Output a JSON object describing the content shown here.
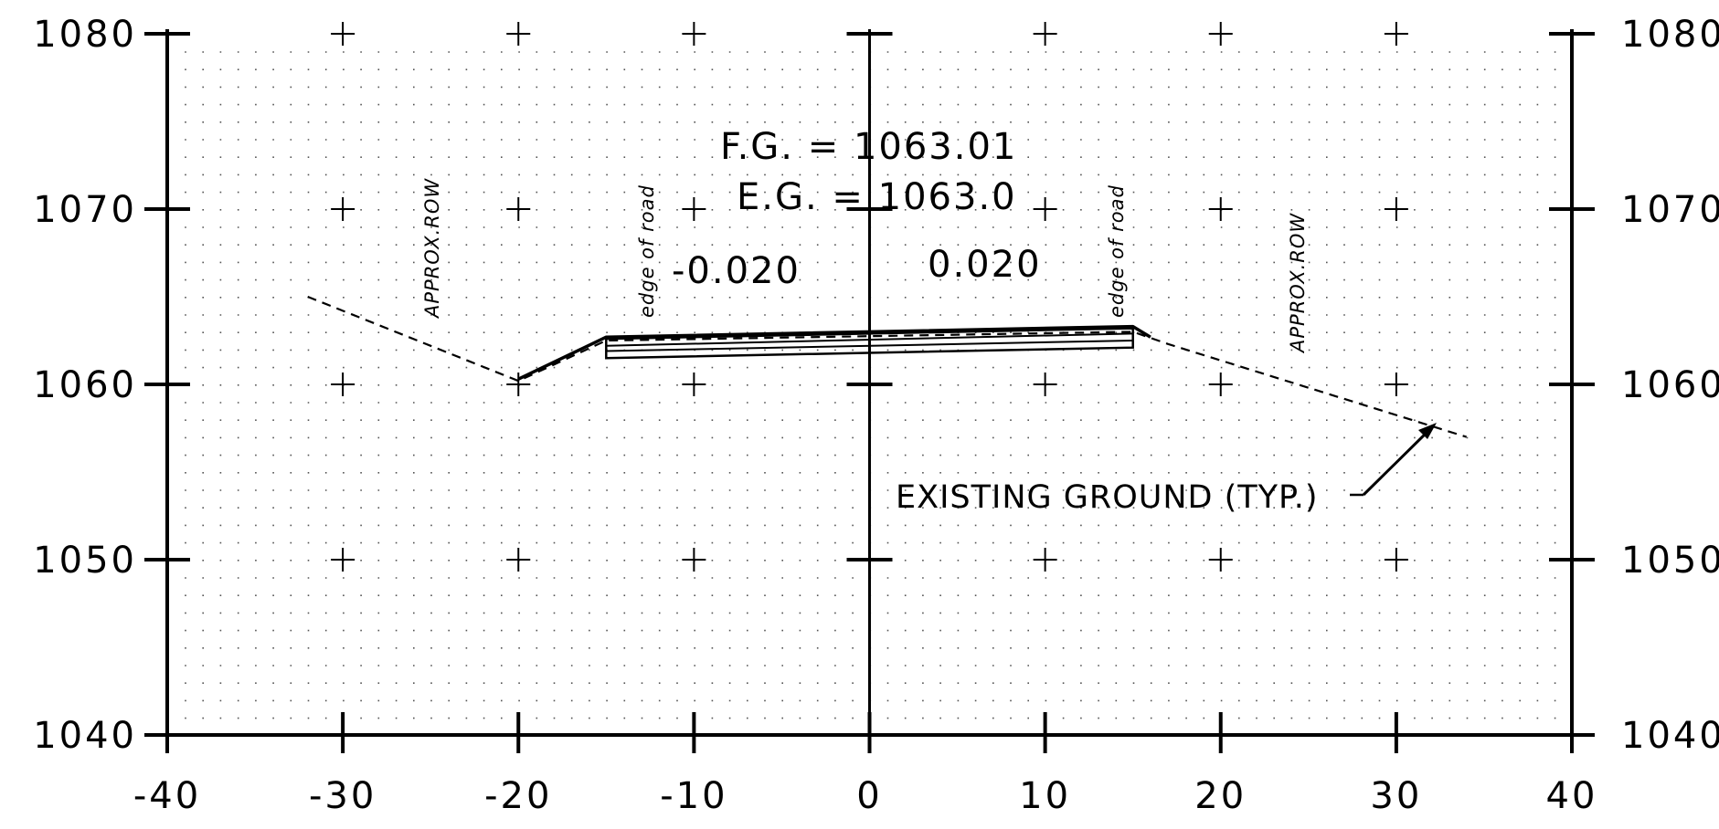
{
  "section": {
    "finished_grade": "F.G.  =  1063.01",
    "existing_grade": "E.G.  =  1063.0",
    "slope_left": "-0.020",
    "slope_right": "0.020",
    "edge_label": "edge of road",
    "row_label": "APPROX.ROW",
    "existing_ground_label": "EXISTING GROUND (TYP.)"
  },
  "chart_data": {
    "type": "line",
    "xlim": [
      -40,
      40
    ],
    "ylim": [
      1040,
      1080
    ],
    "x_ticks": [
      -40,
      -30,
      -20,
      -10,
      0,
      10,
      20,
      30,
      40
    ],
    "x_tick_labels": [
      "-40",
      "-30",
      "-20",
      "-10",
      "0",
      "10",
      "20",
      "30",
      "40"
    ],
    "y_ticks": [
      1040,
      1050,
      1060,
      1070,
      1080
    ],
    "y_tick_labels": [
      "1040",
      "1050",
      "1060",
      "1070",
      "1080"
    ],
    "grid": "dotted",
    "series": [
      {
        "style": "dashed",
        "points": [
          [
            -32,
            1065
          ],
          [
            -20,
            1060.2
          ],
          [
            -15,
            1062.5
          ],
          [
            15,
            1063
          ],
          [
            17,
            1062.3
          ],
          [
            34,
            1057
          ]
        ]
      },
      {
        "style": "solid",
        "points": [
          [
            -20,
            1060.3
          ],
          [
            -15,
            1062.7
          ],
          [
            15,
            1063.3
          ],
          [
            16,
            1062.7
          ]
        ]
      }
    ],
    "pavement_box": {
      "top": [
        [
          -15,
          1062.6
        ],
        [
          15,
          1063.2
        ]
      ],
      "bottom": [
        [
          -15,
          1061.5
        ],
        [
          15,
          1062.1
        ]
      ]
    },
    "pavement_lines": [
      [
        [
          -15,
          1062.2
        ],
        [
          15,
          1062.9
        ]
      ],
      [
        [
          -15,
          1061.9
        ],
        [
          15,
          1062.5
        ]
      ]
    ]
  }
}
